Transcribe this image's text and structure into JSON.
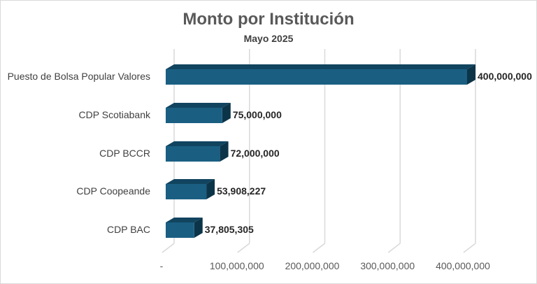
{
  "chart_data": {
    "type": "bar",
    "orientation": "horizontal",
    "style": "3d",
    "title": "Monto por Institución",
    "subtitle": "Mayo 2025",
    "categories": [
      "Puesto de Bolsa Popular Valores",
      "CDP Scotiabank",
      "CDP BCCR",
      "CDP Coopeande",
      "CDP BAC"
    ],
    "values": [
      400000000,
      75000000,
      72000000,
      53908227,
      37805305
    ],
    "value_labels": [
      "400,000,000",
      "75,000,000",
      "72,000,000",
      "53,908,227",
      "37,805,305"
    ],
    "xlim": [
      0,
      400000000
    ],
    "x_ticks": [
      0,
      100000000,
      200000000,
      300000000,
      400000000
    ],
    "x_tick_labels": [
      "-",
      "100,000,000",
      "200,000,000",
      "300,000,000",
      "400,000,000"
    ],
    "grid": true,
    "legend": "none",
    "colors": {
      "bar_front": "#1a5f82",
      "bar_top": "#11445f",
      "bar_side": "#0c3449",
      "grid": "#d9d9d9"
    }
  }
}
